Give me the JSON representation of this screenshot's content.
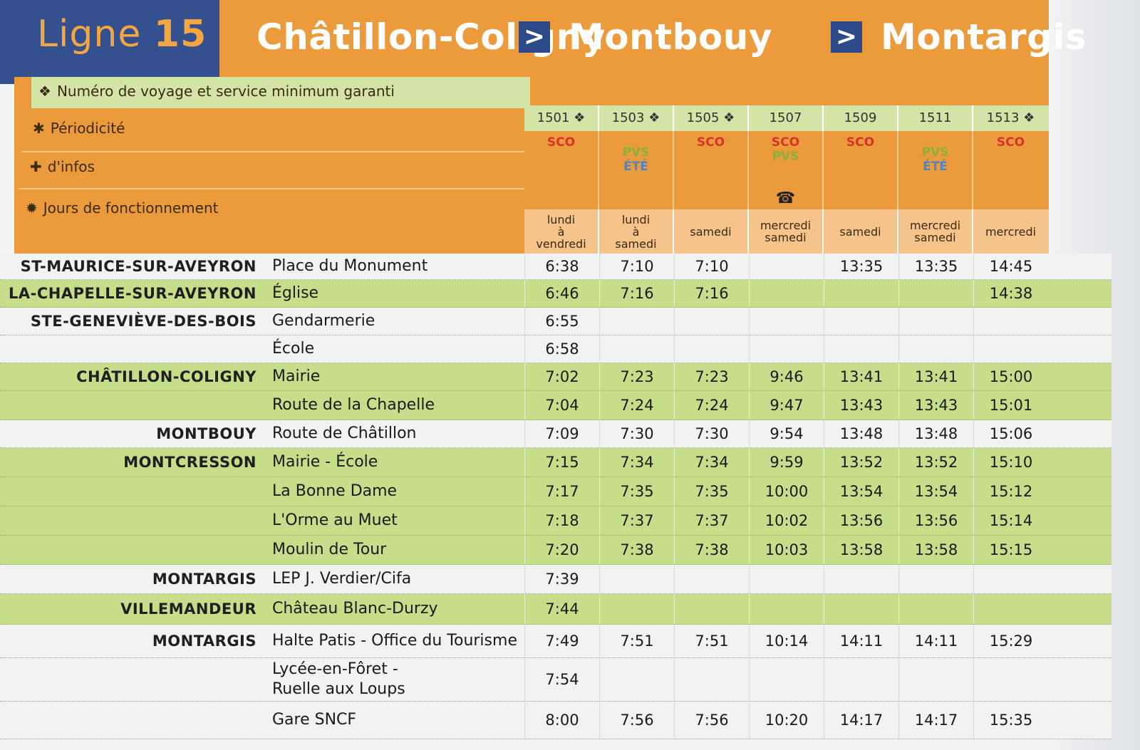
{
  "header": {
    "ligne_word": "Ligne",
    "ligne_number": "15",
    "stops": [
      "Châtillon-Coligny",
      "Montbouy",
      "Montargis"
    ],
    "arrow": ">"
  },
  "labels": {
    "numero": {
      "symbol": "❖",
      "text": "Numéro de voyage et service minimum garanti"
    },
    "periodicite": {
      "symbol": "✱",
      "text": "Périodicité"
    },
    "infos": {
      "symbol": "✚",
      "text": "d'infos"
    },
    "jours": {
      "symbol": "✹",
      "text": "Jours de fonctionnement"
    }
  },
  "trips": [
    {
      "number": "1501 ❖",
      "periodicity": [
        "SCO"
      ],
      "info": "",
      "days": "lundi\nà\nvendredi"
    },
    {
      "number": "1503 ❖",
      "periodicity": [
        "PVS",
        "ÉTÉ"
      ],
      "info": "",
      "days": "lundi\nà\nsamedi"
    },
    {
      "number": "1505 ❖",
      "periodicity": [
        "SCO"
      ],
      "info": "",
      "days": "samedi"
    },
    {
      "number": "1507",
      "periodicity": [
        "SCO",
        "PVS"
      ],
      "info": "☎",
      "days": "mercredi\nsamedi"
    },
    {
      "number": "1509",
      "periodicity": [
        "SCO"
      ],
      "info": "",
      "days": "samedi"
    },
    {
      "number": "1511",
      "periodicity": [
        "PVS",
        "ÉTÉ"
      ],
      "info": "",
      "days": "mercredi\nsamedi"
    },
    {
      "number": "1513 ❖",
      "periodicity": [
        "SCO"
      ],
      "info": "",
      "days": "mercredi"
    }
  ],
  "rows": [
    {
      "commune": "ST-MAURICE-SUR-AVEYRON",
      "stop": "Place du Monument",
      "times": [
        "6:38",
        "7:10",
        "7:10",
        "",
        "13:35",
        "13:35",
        "14:45"
      ],
      "band": "w"
    },
    {
      "commune": "LA-CHAPELLE-SUR-AVEYRON",
      "stop": "Église",
      "times": [
        "6:46",
        "7:16",
        "7:16",
        "",
        "",
        "",
        "14:38"
      ],
      "band": "g"
    },
    {
      "commune": "STE-GENEVIÈVE-DES-BOIS",
      "stop": "Gendarmerie",
      "times": [
        "6:55",
        "",
        "",
        "",
        "",
        "",
        ""
      ],
      "band": "w"
    },
    {
      "commune": "",
      "stop": "École",
      "times": [
        "6:58",
        "",
        "",
        "",
        "",
        "",
        ""
      ],
      "band": "w"
    },
    {
      "commune": "CHÂTILLON-COLIGNY",
      "stop": "Mairie",
      "times": [
        "7:02",
        "7:23",
        "7:23",
        "9:46",
        "13:41",
        "13:41",
        "15:00"
      ],
      "band": "g"
    },
    {
      "commune": "",
      "stop": "Route de la Chapelle",
      "times": [
        "7:04",
        "7:24",
        "7:24",
        "9:47",
        "13:43",
        "13:43",
        "15:01"
      ],
      "band": "g"
    },
    {
      "commune": "MONTBOUY",
      "stop": "Route de Châtillon",
      "times": [
        "7:09",
        "7:30",
        "7:30",
        "9:54",
        "13:48",
        "13:48",
        "15:06"
      ],
      "band": "w"
    },
    {
      "commune": "MONTCRESSON",
      "stop": "Mairie - École",
      "times": [
        "7:15",
        "7:34",
        "7:34",
        "9:59",
        "13:52",
        "13:52",
        "15:10"
      ],
      "band": "g"
    },
    {
      "commune": "",
      "stop": "La Bonne Dame",
      "times": [
        "7:17",
        "7:35",
        "7:35",
        "10:00",
        "13:54",
        "13:54",
        "15:12"
      ],
      "band": "g"
    },
    {
      "commune": "",
      "stop": "L'Orme au Muet",
      "times": [
        "7:18",
        "7:37",
        "7:37",
        "10:02",
        "13:56",
        "13:56",
        "15:14"
      ],
      "band": "g"
    },
    {
      "commune": "",
      "stop": "Moulin de Tour",
      "times": [
        "7:20",
        "7:38",
        "7:38",
        "10:03",
        "13:58",
        "13:58",
        "15:15"
      ],
      "band": "g"
    },
    {
      "commune": "MONTARGIS",
      "stop": "LEP J. Verdier/Cifa",
      "times": [
        "7:39",
        "",
        "",
        "",
        "",
        "",
        ""
      ],
      "band": "w"
    },
    {
      "commune": "VILLEMANDEUR",
      "stop": "Château Blanc-Durzy",
      "times": [
        "7:44",
        "",
        "",
        "",
        "",
        "",
        ""
      ],
      "band": "g"
    },
    {
      "commune": "MONTARGIS",
      "stop": "Halte Patis - Office du Tourisme",
      "times": [
        "7:49",
        "7:51",
        "7:51",
        "10:14",
        "14:11",
        "14:11",
        "15:29"
      ],
      "band": "w"
    },
    {
      "commune": "",
      "stop": "Lycée-en-Fôret -\nRuelle aux Loups",
      "times": [
        "7:54",
        "",
        "",
        "",
        "",
        "",
        ""
      ],
      "band": "w"
    },
    {
      "commune": "",
      "stop": "Gare SNCF",
      "times": [
        "8:00",
        "7:56",
        "7:56",
        "10:20",
        "14:17",
        "14:17",
        "15:35"
      ],
      "band": "w"
    }
  ],
  "colors": {
    "orange": "#ec9b3c",
    "blue": "#34508f",
    "green": "#c6dd8a",
    "red": "#d7332b"
  }
}
